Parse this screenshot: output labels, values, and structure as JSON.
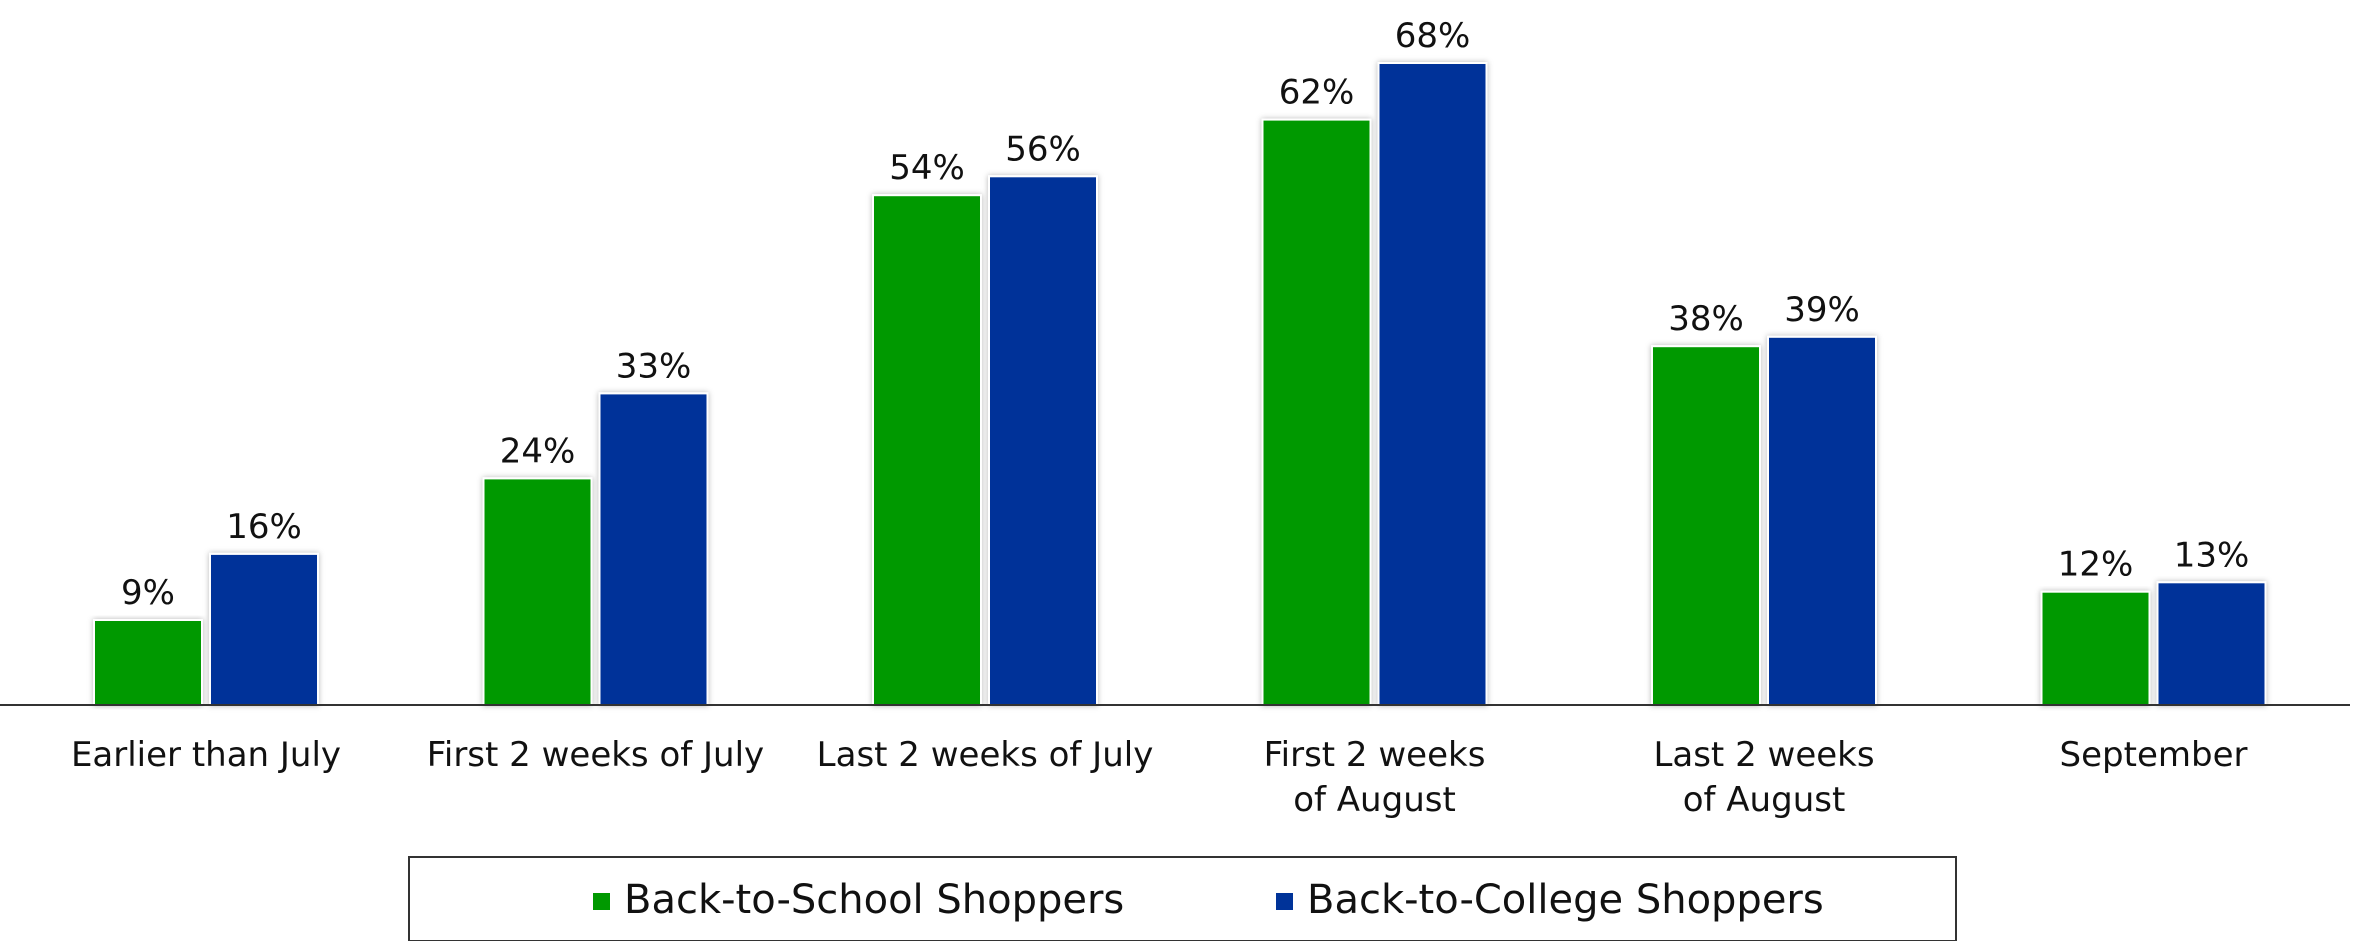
{
  "chart_data": {
    "type": "bar",
    "categories": [
      [
        "Earlier than July"
      ],
      [
        "First 2 weeks of July"
      ],
      [
        "Last 2 weeks of July"
      ],
      [
        "First 2 weeks",
        "of August"
      ],
      [
        "Last 2 weeks",
        "of August"
      ],
      [
        "September"
      ]
    ],
    "series": [
      {
        "name": "Back-to-School Shoppers",
        "values": [
          9,
          24,
          54,
          62,
          38,
          12
        ],
        "labels": [
          "9%",
          "24%",
          "54%",
          "62%",
          "38%",
          "12%"
        ],
        "color": "#009900"
      },
      {
        "name": "Back-to-College Shoppers",
        "values": [
          16,
          33,
          56,
          68,
          39,
          13
        ],
        "labels": [
          "16%",
          "33%",
          "56%",
          "68%",
          "39%",
          "13%"
        ],
        "color": "#003399"
      }
    ],
    "title": "",
    "xlabel": "",
    "ylabel": "",
    "ylim": [
      0,
      70
    ],
    "grid": false,
    "legend": "bottom"
  }
}
